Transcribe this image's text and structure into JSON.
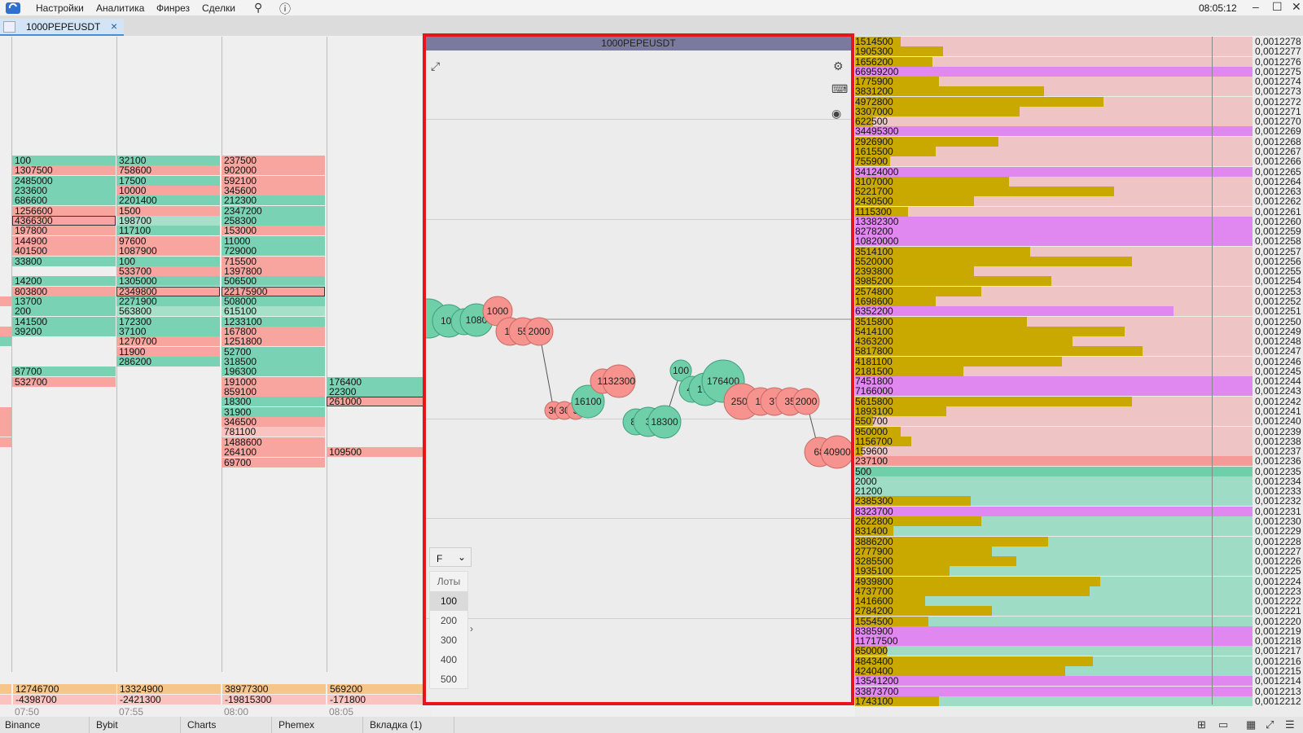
{
  "menu": {
    "items": [
      "Настройки",
      "Аналитика",
      "Финрез",
      "Сделки"
    ],
    "pin_icon": "pin-icon",
    "help_icon": "help-icon",
    "clock": "08:05:12"
  },
  "tab": {
    "label": "1000PEPEUSDT",
    "close": "×"
  },
  "columns": [
    {
      "cells": [
        {
          "v": "100",
          "c": "g"
        },
        {
          "v": "1307500",
          "c": "r"
        },
        {
          "v": "2485000",
          "c": "g"
        },
        {
          "v": "233600",
          "c": "g"
        },
        {
          "v": "686600",
          "c": "g"
        },
        {
          "v": "1256600",
          "c": "r"
        },
        {
          "v": "4366300",
          "c": "r",
          "hl": true
        },
        {
          "v": "197800",
          "c": "r"
        },
        {
          "v": "144900",
          "c": "r"
        },
        {
          "v": "401500",
          "c": "r"
        },
        {
          "v": "33800",
          "c": "g"
        },
        {
          "v": "",
          "c": ""
        },
        {
          "v": "14200",
          "c": "g"
        },
        {
          "v": "803800",
          "c": "r"
        },
        {
          "v": "13700",
          "c": "g"
        },
        {
          "v": "200",
          "c": "g"
        },
        {
          "v": "141500",
          "c": "g"
        },
        {
          "v": "39200",
          "c": "g"
        },
        {
          "v": "",
          "c": ""
        },
        {
          "v": "",
          "c": ""
        },
        {
          "v": "",
          "c": ""
        },
        {
          "v": "87700",
          "c": "g"
        },
        {
          "v": "532700",
          "c": "r"
        }
      ],
      "total_buy": "12746700",
      "total_sell": "-4398700",
      "time": "07:50"
    },
    {
      "cells": [
        {
          "v": "32100",
          "c": "g"
        },
        {
          "v": "758600",
          "c": "r"
        },
        {
          "v": "17500",
          "c": "g"
        },
        {
          "v": "10000",
          "c": "r"
        },
        {
          "v": "2201400",
          "c": "g"
        },
        {
          "v": "1500",
          "c": "r"
        },
        {
          "v": "198700",
          "c": "lg"
        },
        {
          "v": "117100",
          "c": "g"
        },
        {
          "v": "97600",
          "c": "r"
        },
        {
          "v": "1087900",
          "c": "r"
        },
        {
          "v": "100",
          "c": "g"
        },
        {
          "v": "533700",
          "c": "r"
        },
        {
          "v": "1305000",
          "c": "g"
        },
        {
          "v": "2349800",
          "c": "r",
          "hl": true
        },
        {
          "v": "2271900",
          "c": "g"
        },
        {
          "v": "563800",
          "c": "lg"
        },
        {
          "v": "172300",
          "c": "g"
        },
        {
          "v": "37100",
          "c": "g"
        },
        {
          "v": "1270700",
          "c": "r"
        },
        {
          "v": "11900",
          "c": "r"
        },
        {
          "v": "286200",
          "c": "g"
        }
      ],
      "total_buy": "13324900",
      "total_sell": "-2421300",
      "time": "07:55"
    },
    {
      "cells": [
        {
          "v": "237500",
          "c": "r"
        },
        {
          "v": "902000",
          "c": "r"
        },
        {
          "v": "592100",
          "c": "r"
        },
        {
          "v": "345600",
          "c": "r"
        },
        {
          "v": "212300",
          "c": "g"
        },
        {
          "v": "2347200",
          "c": "g"
        },
        {
          "v": "258300",
          "c": "g"
        },
        {
          "v": "153000",
          "c": "r"
        },
        {
          "v": "11000",
          "c": "g"
        },
        {
          "v": "729000",
          "c": "g"
        },
        {
          "v": "715500",
          "c": "r"
        },
        {
          "v": "1397800",
          "c": "r"
        },
        {
          "v": "506500",
          "c": "g"
        },
        {
          "v": "22175900",
          "c": "r",
          "hl": true
        },
        {
          "v": "508000",
          "c": "g"
        },
        {
          "v": "615100",
          "c": "lg"
        },
        {
          "v": "1233100",
          "c": "g"
        },
        {
          "v": "167800",
          "c": "r"
        },
        {
          "v": "1251800",
          "c": "r"
        },
        {
          "v": "52700",
          "c": "g"
        },
        {
          "v": "318500",
          "c": "g"
        },
        {
          "v": "196300",
          "c": "g"
        },
        {
          "v": "191000",
          "c": "r"
        },
        {
          "v": "859100",
          "c": "r"
        },
        {
          "v": "18300",
          "c": "g"
        },
        {
          "v": "31900",
          "c": "g"
        },
        {
          "v": "346500",
          "c": "r"
        },
        {
          "v": "781100",
          "c": "lr"
        },
        {
          "v": "1488600",
          "c": "r"
        },
        {
          "v": "264100",
          "c": "r"
        },
        {
          "v": "69700",
          "c": "r"
        }
      ],
      "total_buy": "38977300",
      "total_sell": "-19815300",
      "time": "08:00"
    },
    {
      "cells": [
        {
          "v": "176400",
          "c": "g",
          "row": 22
        },
        {
          "v": "22300",
          "c": "g",
          "row": 23
        },
        {
          "v": "261000",
          "c": "r",
          "row": 24,
          "hl": true
        },
        {
          "v": "109500",
          "c": "r",
          "row": 29
        }
      ],
      "total_buy": "569200",
      "total_sell": "-171800",
      "time": "08:05"
    }
  ],
  "panel": {
    "title": "1000PEPEUSDT",
    "icons": [
      "chart-type-icon",
      "settings-icon",
      "keyboard-icon",
      "eye-icon"
    ],
    "filter": "F",
    "lots_header": "Лоты",
    "lots": [
      "100",
      "200",
      "300",
      "400",
      "500"
    ],
    "lots_selected": "100"
  },
  "bubbles": [
    {
      "label": "",
      "side": "buy"
    },
    {
      "label": "106",
      "side": "buy"
    },
    {
      "label": "6",
      "side": "buy"
    },
    {
      "label": "1080",
      "side": "buy"
    },
    {
      "label": "1000",
      "side": "sell"
    },
    {
      "label": "19",
      "side": "sell"
    },
    {
      "label": "55",
      "side": "sell"
    },
    {
      "label": "2000",
      "side": "sell"
    },
    {
      "label": "30",
      "side": "sell"
    },
    {
      "label": "30",
      "side": "sell"
    },
    {
      "label": "3",
      "side": "sell"
    },
    {
      "label": "16100",
      "side": "buy"
    },
    {
      "label": "13",
      "side": "sell"
    },
    {
      "label": "132300",
      "side": "sell"
    },
    {
      "label": "80",
      "side": "buy"
    },
    {
      "label": "3",
      "side": "buy"
    },
    {
      "label": "18300",
      "side": "buy"
    },
    {
      "label": "100",
      "side": "buy"
    },
    {
      "label": "48",
      "side": "buy"
    },
    {
      "label": "175",
      "side": "buy"
    },
    {
      "label": "176400",
      "side": "buy"
    },
    {
      "label": "2500",
      "side": "sell"
    },
    {
      "label": "18",
      "side": "sell"
    },
    {
      "label": "37",
      "side": "sell"
    },
    {
      "label": "35",
      "side": "sell"
    },
    {
      "label": "2000",
      "side": "sell"
    },
    {
      "label": "68",
      "side": "sell"
    },
    {
      "label": "40900",
      "side": "sell"
    }
  ],
  "orderbook": [
    {
      "v": "1514500",
      "p": "0,0012278",
      "b": 0.13,
      "t": "bar"
    },
    {
      "v": "1905300",
      "p": "0,0012277",
      "b": 0.25,
      "t": "bar"
    },
    {
      "v": "1656200",
      "p": "0,0012276",
      "b": 0.22,
      "t": "bar"
    },
    {
      "v": "66959200",
      "p": "0,0012275",
      "b": 1.0,
      "t": "big"
    },
    {
      "v": "1775900",
      "p": "0,0012274",
      "b": 0.24,
      "t": "bar"
    },
    {
      "v": "3831200",
      "p": "0,0012273",
      "b": 0.54,
      "t": "bar"
    },
    {
      "v": "4972800",
      "p": "0,0012272",
      "b": 0.71,
      "t": "bar"
    },
    {
      "v": "3307000",
      "p": "0,0012271",
      "b": 0.47,
      "t": "bar"
    },
    {
      "v": "622500",
      "p": "0,0012270",
      "b": 0.05,
      "t": "bar"
    },
    {
      "v": "34495300",
      "p": "0,0012269",
      "b": 1.0,
      "t": "big"
    },
    {
      "v": "2926900",
      "p": "0,0012268",
      "b": 0.41,
      "t": "bar"
    },
    {
      "v": "1615500",
      "p": "0,0012267",
      "b": 0.23,
      "t": "bar"
    },
    {
      "v": "755900",
      "p": "0,0012266",
      "b": 0.1,
      "t": "bar"
    },
    {
      "v": "34124000",
      "p": "0,0012265",
      "b": 1.0,
      "t": "big"
    },
    {
      "v": "3107000",
      "p": "0,0012264",
      "b": 0.44,
      "t": "bar"
    },
    {
      "v": "5221700",
      "p": "0,0012263",
      "b": 0.74,
      "t": "bar"
    },
    {
      "v": "2430500",
      "p": "0,0012262",
      "b": 0.34,
      "t": "bar"
    },
    {
      "v": "1115300",
      "p": "0,0012261",
      "b": 0.15,
      "t": "bar"
    },
    {
      "v": "13382300",
      "p": "0,0012260",
      "b": 1.0,
      "t": "big"
    },
    {
      "v": "8278200",
      "p": "0,0012259",
      "b": 1.0,
      "t": "big"
    },
    {
      "v": "10820000",
      "p": "0,0012258",
      "b": 1.0,
      "t": "big"
    },
    {
      "v": "3514100",
      "p": "0,0012257",
      "b": 0.5,
      "t": "bar"
    },
    {
      "v": "5520000",
      "p": "0,0012256",
      "b": 0.79,
      "t": "bar"
    },
    {
      "v": "2393800",
      "p": "0,0012255",
      "b": 0.34,
      "t": "bar"
    },
    {
      "v": "3985200",
      "p": "0,0012254",
      "b": 0.56,
      "t": "bar"
    },
    {
      "v": "2574800",
      "p": "0,0012253",
      "b": 0.36,
      "t": "bar"
    },
    {
      "v": "1698600",
      "p": "0,0012252",
      "b": 0.23,
      "t": "bar"
    },
    {
      "v": "6352200",
      "p": "0,0012251",
      "b": 0.91,
      "t": "big"
    },
    {
      "v": "3515800",
      "p": "0,0012250",
      "b": 0.49,
      "t": "bar"
    },
    {
      "v": "5414100",
      "p": "0,0012249",
      "b": 0.77,
      "t": "bar"
    },
    {
      "v": "4363200",
      "p": "0,0012248",
      "b": 0.62,
      "t": "bar"
    },
    {
      "v": "5817800",
      "p": "0,0012247",
      "b": 0.82,
      "t": "bar"
    },
    {
      "v": "4181100",
      "p": "0,0012246",
      "b": 0.59,
      "t": "bar"
    },
    {
      "v": "2181500",
      "p": "0,0012245",
      "b": 0.31,
      "t": "bar"
    },
    {
      "v": "7451800",
      "p": "0,0012244",
      "b": 1.0,
      "t": "big"
    },
    {
      "v": "7166000",
      "p": "0,0012243",
      "b": 1.0,
      "t": "big"
    },
    {
      "v": "5615800",
      "p": "0,0012242",
      "b": 0.79,
      "t": "bar"
    },
    {
      "v": "1893100",
      "p": "0,0012241",
      "b": 0.26,
      "t": "bar"
    },
    {
      "v": "550700",
      "p": "0,0012240",
      "b": 0.05,
      "t": "bar"
    },
    {
      "v": "950000",
      "p": "0,0012239",
      "b": 0.13,
      "t": "bar"
    },
    {
      "v": "1156700",
      "p": "0,0012238",
      "b": 0.16,
      "t": "bar"
    },
    {
      "v": "159600",
      "p": "0,0012237",
      "b": 0.02,
      "t": "bar"
    },
    {
      "v": "237100",
      "p": "0,0012236",
      "b": 0.0,
      "t": "askline"
    },
    {
      "v": "500",
      "p": "0,0012235",
      "b": 0.0,
      "t": "bidline"
    },
    {
      "v": "2000",
      "p": "0,0012234",
      "b": 0.0,
      "t": "bar",
      "side": "bid"
    },
    {
      "v": "21200",
      "p": "0,0012233",
      "b": 0.0,
      "t": "bar",
      "side": "bid"
    },
    {
      "v": "2385300",
      "p": "0,0012232",
      "b": 0.33,
      "t": "bar",
      "side": "bid"
    },
    {
      "v": "8323700",
      "p": "0,0012231",
      "b": 1.0,
      "t": "big",
      "side": "bid"
    },
    {
      "v": "2622800",
      "p": "0,0012230",
      "b": 0.36,
      "t": "bar",
      "side": "bid"
    },
    {
      "v": "831400",
      "p": "0,0012229",
      "b": 0.11,
      "t": "bar",
      "side": "bid"
    },
    {
      "v": "3886200",
      "p": "0,0012228",
      "b": 0.55,
      "t": "bar",
      "side": "bid"
    },
    {
      "v": "2777900",
      "p": "0,0012227",
      "b": 0.39,
      "t": "bar",
      "side": "bid"
    },
    {
      "v": "3285500",
      "p": "0,0012226",
      "b": 0.46,
      "t": "bar",
      "side": "bid"
    },
    {
      "v": "1935100",
      "p": "0,0012225",
      "b": 0.27,
      "t": "bar",
      "side": "bid"
    },
    {
      "v": "4939800",
      "p": "0,0012224",
      "b": 0.7,
      "t": "bar",
      "side": "bid"
    },
    {
      "v": "4737700",
      "p": "0,0012223",
      "b": 0.67,
      "t": "bar",
      "side": "bid"
    },
    {
      "v": "1416600",
      "p": "0,0012222",
      "b": 0.2,
      "t": "bar",
      "side": "bid"
    },
    {
      "v": "2784200",
      "p": "0,0012221",
      "b": 0.39,
      "t": "bar",
      "side": "bid"
    },
    {
      "v": "1554500",
      "p": "0,0012220",
      "b": 0.21,
      "t": "bar",
      "side": "bid"
    },
    {
      "v": "8385900",
      "p": "0,0012219",
      "b": 1.0,
      "t": "big",
      "side": "bid"
    },
    {
      "v": "11717500",
      "p": "0,0012218",
      "b": 1.0,
      "t": "big",
      "side": "bid"
    },
    {
      "v": "650000",
      "p": "0,0012217",
      "b": 0.09,
      "t": "bar",
      "side": "bid"
    },
    {
      "v": "4843400",
      "p": "0,0012216",
      "b": 0.68,
      "t": "bar",
      "side": "bid"
    },
    {
      "v": "4240400",
      "p": "0,0012215",
      "b": 0.6,
      "t": "bar",
      "side": "bid"
    },
    {
      "v": "13541200",
      "p": "0,0012214",
      "b": 1.0,
      "t": "big",
      "side": "bid"
    },
    {
      "v": "33873700",
      "p": "0,0012213",
      "b": 1.0,
      "t": "big",
      "side": "bid"
    },
    {
      "v": "1743100",
      "p": "0,0012212",
      "b": 0.24,
      "t": "bar",
      "side": "bid"
    }
  ],
  "bottom_tabs": [
    "Binance",
    "Bybit",
    "Charts",
    "Phemex",
    "Вкладка (1)"
  ],
  "colors": {
    "buy": "#6fcfa9",
    "sell": "#f7938e",
    "ask_bg": "#efc4c4",
    "bid_bg": "#9fdcc6",
    "vol_bar": "#c9a800",
    "big": "#e088f0",
    "frame": "#e8141c"
  }
}
